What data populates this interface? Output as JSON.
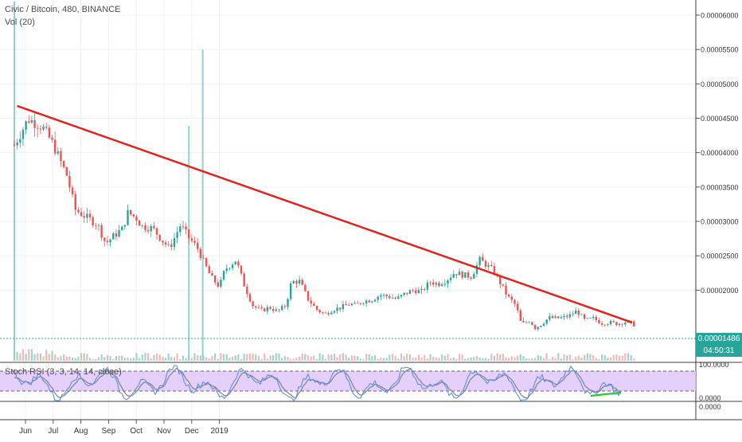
{
  "header": {
    "title": "Civic / Bitcoin, 480, BINANCE",
    "volume_label": "Vol (20)",
    "stoch_label": "Stoch RSI (3, 3, 14, 14, close)"
  },
  "price_axis": {
    "labels": [
      "0.00006000",
      "0.00005500",
      "0.00005000",
      "0.00004500",
      "0.00004000",
      "0.00003500",
      "0.00003000",
      "0.00002500",
      "0.00002000"
    ],
    "last_price": "0.00001486",
    "countdown": "04:50:31"
  },
  "stoch_axis": {
    "labels": [
      "100.0000",
      "0.0000"
    ],
    "bottom_label": "0.0000"
  },
  "time_axis": {
    "labels": [
      "Jun",
      "Jul",
      "Aug",
      "Sep",
      "Oct",
      "Nov",
      "Dec",
      "2019"
    ]
  },
  "colors": {
    "up": "#26a69a",
    "down": "#ef5350",
    "trendline": "#e0241b",
    "stoch_k": "#5b8def",
    "stoch_d": "#888888",
    "stoch_band": "#e1c8fb",
    "support": "#22cc22"
  },
  "chart_data": {
    "type": "line",
    "title": "Civic / Bitcoin, 480, BINANCE",
    "x_ticks": [
      "Jun",
      "Jul",
      "Aug",
      "Sep",
      "Oct",
      "Nov",
      "Dec",
      "2019"
    ],
    "ylim": [
      9.5e-06,
      6.22e-05
    ],
    "price_close": [
      [
        0.0,
        4.11e-05
      ],
      [
        0.5,
        4.49e-05
      ],
      [
        1.0,
        4.38e-05
      ],
      [
        1.4,
        4.12e-05
      ],
      [
        1.9,
        3.66e-05
      ],
      [
        2.2,
        3.17e-05
      ],
      [
        2.6,
        3.06e-05
      ],
      [
        3.0,
        2.96e-05
      ],
      [
        3.3,
        2.68e-05
      ],
      [
        3.7,
        2.83e-05
      ],
      [
        3.9,
        2.89e-05
      ],
      [
        4.1,
        3.13e-05
      ],
      [
        4.4,
        3.05e-05
      ],
      [
        4.6,
        2.93e-05
      ],
      [
        5.0,
        2.9e-05
      ],
      [
        5.3,
        2.74e-05
      ],
      [
        5.6,
        2.61e-05
      ],
      [
        6.0,
        2.95e-05
      ],
      [
        6.3,
        2.76e-05
      ],
      [
        6.6,
        2.62e-05
      ],
      [
        6.8,
        2.44e-05
      ],
      [
        7.1,
        2.19e-05
      ],
      [
        7.4,
        2.05e-05
      ],
      [
        7.6,
        2.3e-05
      ],
      [
        8.0,
        2.44e-05
      ],
      [
        8.3,
        2.07e-05
      ],
      [
        8.6,
        1.78e-05
      ],
      [
        8.9,
        1.7e-05
      ],
      [
        9.2,
        1.75e-05
      ],
      [
        9.5,
        1.69e-05
      ],
      [
        9.8,
        1.78e-05
      ],
      [
        10.0,
        2.12e-05
      ],
      [
        10.3,
        2.13e-05
      ],
      [
        10.6,
        1.87e-05
      ],
      [
        10.9,
        1.72e-05
      ],
      [
        11.2,
        1.65e-05
      ],
      [
        11.5,
        1.72e-05
      ],
      [
        11.8,
        1.75e-05
      ],
      [
        12.1,
        1.8e-05
      ],
      [
        12.3,
        1.78e-05
      ],
      [
        12.6,
        1.84e-05
      ],
      [
        12.9,
        1.86e-05
      ],
      [
        13.2,
        1.93e-05
      ],
      [
        13.5,
        1.91e-05
      ],
      [
        13.8,
        1.87e-05
      ],
      [
        14.1,
        1.95e-05
      ],
      [
        14.4,
        2e-05
      ],
      [
        14.7,
        1.98e-05
      ],
      [
        15.0,
        2.12e-05
      ],
      [
        15.3,
        2.09e-05
      ],
      [
        15.6,
        2.15e-05
      ],
      [
        15.9,
        2.26e-05
      ],
      [
        16.2,
        2.22e-05
      ],
      [
        16.5,
        2.2e-05
      ],
      [
        16.8,
        2.44e-05
      ],
      [
        17.0,
        2.38e-05
      ],
      [
        17.3,
        2.28e-05
      ],
      [
        17.6,
        2.06e-05
      ],
      [
        17.8,
        1.91e-05
      ],
      [
        18.1,
        1.78e-05
      ],
      [
        18.3,
        1.5e-05
      ],
      [
        18.6,
        1.56e-05
      ],
      [
        18.8,
        1.45e-05
      ],
      [
        19.0,
        1.5e-05
      ],
      [
        19.3,
        1.6e-05
      ],
      [
        19.6,
        1.59e-05
      ],
      [
        20.0,
        1.62e-05
      ],
      [
        20.3,
        1.7e-05
      ],
      [
        20.6,
        1.56e-05
      ],
      [
        20.9,
        1.59e-05
      ],
      [
        21.2,
        1.52e-05
      ],
      [
        21.5,
        1.53e-05
      ],
      [
        21.8,
        1.51e-05
      ],
      [
        22.0,
        1.54e-05
      ],
      [
        22.2,
        1.53e-05
      ],
      [
        22.4,
        1.49e-05
      ]
    ],
    "trendline": {
      "from": [
        0.1,
        4.68e-05
      ],
      "to": [
        22.3,
        1.53e-05
      ]
    },
    "volume_spikes": [
      [
        0.0,
        6.2e-05
      ],
      [
        6.3,
        4.39e-05
      ],
      [
        6.8,
        5.5e-05
      ]
    ]
  }
}
